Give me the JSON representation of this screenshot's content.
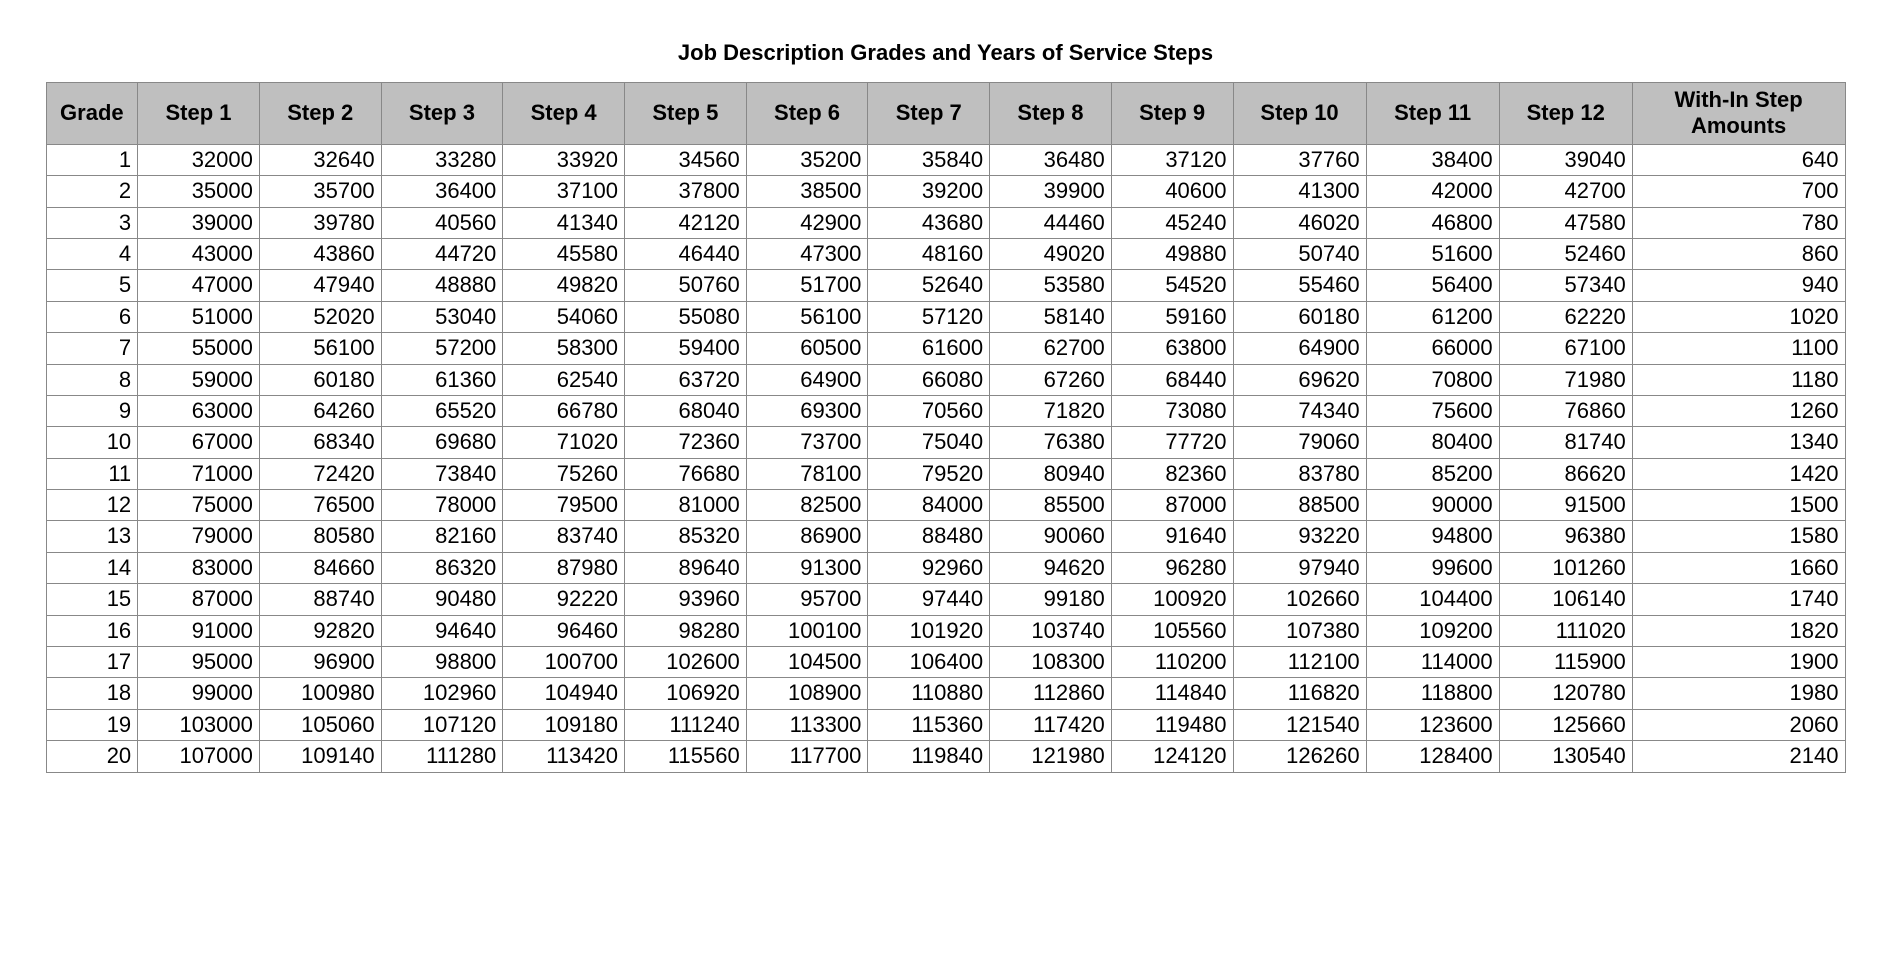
{
  "title": "Job Description Grades and Years of Service Steps",
  "table": {
    "columns": [
      "Grade",
      "Step 1",
      "Step 2",
      "Step 3",
      "Step 4",
      "Step 5",
      "Step 6",
      "Step 7",
      "Step 8",
      "Step 9",
      "Step 10",
      "Step 11",
      "Step 12",
      "With-In Step Amounts"
    ],
    "rows": [
      [
        1,
        32000,
        32640,
        33280,
        33920,
        34560,
        35200,
        35840,
        36480,
        37120,
        37760,
        38400,
        39040,
        640
      ],
      [
        2,
        35000,
        35700,
        36400,
        37100,
        37800,
        38500,
        39200,
        39900,
        40600,
        41300,
        42000,
        42700,
        700
      ],
      [
        3,
        39000,
        39780,
        40560,
        41340,
        42120,
        42900,
        43680,
        44460,
        45240,
        46020,
        46800,
        47580,
        780
      ],
      [
        4,
        43000,
        43860,
        44720,
        45580,
        46440,
        47300,
        48160,
        49020,
        49880,
        50740,
        51600,
        52460,
        860
      ],
      [
        5,
        47000,
        47940,
        48880,
        49820,
        50760,
        51700,
        52640,
        53580,
        54520,
        55460,
        56400,
        57340,
        940
      ],
      [
        6,
        51000,
        52020,
        53040,
        54060,
        55080,
        56100,
        57120,
        58140,
        59160,
        60180,
        61200,
        62220,
        1020
      ],
      [
        7,
        55000,
        56100,
        57200,
        58300,
        59400,
        60500,
        61600,
        62700,
        63800,
        64900,
        66000,
        67100,
        1100
      ],
      [
        8,
        59000,
        60180,
        61360,
        62540,
        63720,
        64900,
        66080,
        67260,
        68440,
        69620,
        70800,
        71980,
        1180
      ],
      [
        9,
        63000,
        64260,
        65520,
        66780,
        68040,
        69300,
        70560,
        71820,
        73080,
        74340,
        75600,
        76860,
        1260
      ],
      [
        10,
        67000,
        68340,
        69680,
        71020,
        72360,
        73700,
        75040,
        76380,
        77720,
        79060,
        80400,
        81740,
        1340
      ],
      [
        11,
        71000,
        72420,
        73840,
        75260,
        76680,
        78100,
        79520,
        80940,
        82360,
        83780,
        85200,
        86620,
        1420
      ],
      [
        12,
        75000,
        76500,
        78000,
        79500,
        81000,
        82500,
        84000,
        85500,
        87000,
        88500,
        90000,
        91500,
        1500
      ],
      [
        13,
        79000,
        80580,
        82160,
        83740,
        85320,
        86900,
        88480,
        90060,
        91640,
        93220,
        94800,
        96380,
        1580
      ],
      [
        14,
        83000,
        84660,
        86320,
        87980,
        89640,
        91300,
        92960,
        94620,
        96280,
        97940,
        99600,
        101260,
        1660
      ],
      [
        15,
        87000,
        88740,
        90480,
        92220,
        93960,
        95700,
        97440,
        99180,
        100920,
        102660,
        104400,
        106140,
        1740
      ],
      [
        16,
        91000,
        92820,
        94640,
        96460,
        98280,
        100100,
        101920,
        103740,
        105560,
        107380,
        109200,
        111020,
        1820
      ],
      [
        17,
        95000,
        96900,
        98800,
        100700,
        102600,
        104500,
        106400,
        108300,
        110200,
        112100,
        114000,
        115900,
        1900
      ],
      [
        18,
        99000,
        100980,
        102960,
        104940,
        106920,
        108900,
        110880,
        112860,
        114840,
        116820,
        118800,
        120780,
        1980
      ],
      [
        19,
        103000,
        105060,
        107120,
        109180,
        111240,
        113300,
        115360,
        117420,
        119480,
        121540,
        123600,
        125660,
        2060
      ],
      [
        20,
        107000,
        109140,
        111280,
        113420,
        115560,
        117700,
        119840,
        121980,
        124120,
        126260,
        128400,
        130540,
        2140
      ]
    ],
    "header_bg": "#bfbfbf",
    "border_color": "#888888",
    "row_bg": "#ffffff",
    "text_color": "#000000",
    "title_fontsize": 22,
    "cell_fontsize": 22
  }
}
